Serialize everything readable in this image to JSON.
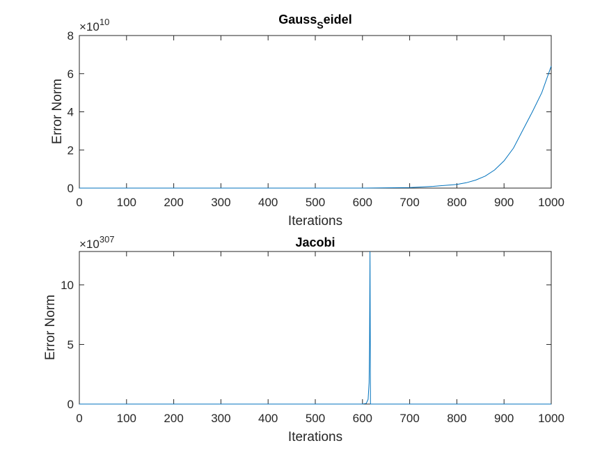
{
  "chart_data": [
    {
      "type": "line",
      "title_main": "Gauss",
      "title_sub": "S",
      "title_tail": "eidel",
      "xlabel": "Iterations",
      "ylabel": "Error Norm",
      "xlim": [
        0,
        1000
      ],
      "ylim": [
        0,
        8
      ],
      "xticks": [
        "0",
        "100",
        "200",
        "300",
        "400",
        "500",
        "600",
        "700",
        "800",
        "900",
        "1000"
      ],
      "yticks": [
        "0",
        "2",
        "4",
        "6",
        "8"
      ],
      "y_multiplier_base": "×10",
      "y_multiplier_exp": "10",
      "series": [
        {
          "color": "#0072BD",
          "x": [
            0,
            100,
            200,
            300,
            400,
            500,
            600,
            700,
            750,
            800,
            820,
            840,
            860,
            880,
            900,
            920,
            940,
            960,
            980,
            1000
          ],
          "y": [
            0,
            0,
            0,
            0,
            0,
            0,
            0.001,
            0.03,
            0.09,
            0.19,
            0.28,
            0.42,
            0.63,
            0.95,
            1.43,
            2.1,
            3.05,
            4.0,
            5.0,
            6.4
          ]
        }
      ]
    },
    {
      "type": "line",
      "title_main": "Jacobi",
      "title_sub": "",
      "title_tail": "",
      "xlabel": "Iterations",
      "ylabel": "Error Norm",
      "xlim": [
        0,
        1000
      ],
      "ylim": [
        0,
        12.8
      ],
      "xticks": [
        "0",
        "100",
        "200",
        "300",
        "400",
        "500",
        "600",
        "700",
        "800",
        "900",
        "1000"
      ],
      "yticks": [
        "0",
        "5",
        "10"
      ],
      "y_multiplier_base": "×10",
      "y_multiplier_exp": "307",
      "series": [
        {
          "color": "#0072BD",
          "x": [
            0,
            100,
            200,
            300,
            400,
            500,
            600,
            608,
            612,
            614,
            615,
            616,
            617,
            1000
          ],
          "y": [
            0,
            0,
            0,
            0,
            0,
            0,
            0,
            0.05,
            0.4,
            1.8,
            5.0,
            12.8,
            0,
            0
          ]
        }
      ]
    }
  ]
}
